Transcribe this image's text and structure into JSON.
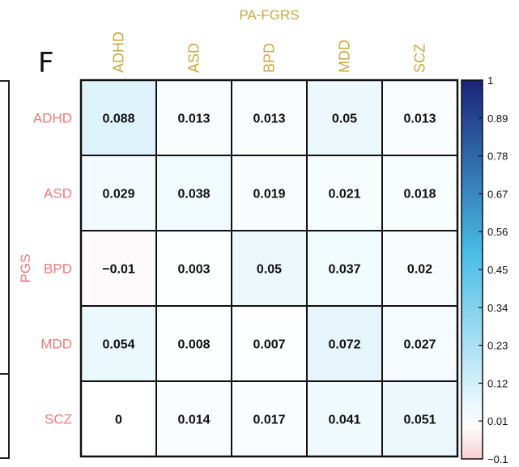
{
  "panel_letter": "F",
  "chart_data": {
    "type": "heatmap",
    "title": "",
    "xlabel": "PA-FGRS",
    "ylabel": "PGS",
    "x_categories": [
      "ADHD",
      "ASD",
      "BPD",
      "MDD",
      "SCZ"
    ],
    "y_categories": [
      "ADHD",
      "ASD",
      "BPD",
      "MDD",
      "SCZ"
    ],
    "values": [
      [
        0.088,
        0.013,
        0.013,
        0.05,
        0.013
      ],
      [
        0.029,
        0.038,
        0.019,
        0.021,
        0.018
      ],
      [
        -0.01,
        0.003,
        0.05,
        0.037,
        0.02
      ],
      [
        0.054,
        0.008,
        0.007,
        0.072,
        0.027
      ],
      [
        0,
        0.014,
        0.017,
        0.041,
        0.051
      ]
    ],
    "cell_labels": [
      [
        "0.088",
        "0.013",
        "0.013",
        "0.05",
        "0.013"
      ],
      [
        "0.029",
        "0.038",
        "0.019",
        "0.021",
        "0.018"
      ],
      [
        "−0.01",
        "0.003",
        "0.05",
        "0.037",
        "0.02"
      ],
      [
        "0.054",
        "0.008",
        "0.007",
        "0.072",
        "0.027"
      ],
      [
        "0",
        "0.014",
        "0.017",
        "0.041",
        "0.051"
      ]
    ],
    "colorbar": {
      "range": [
        -0.1,
        1
      ],
      "ticks": [
        1,
        0.89,
        0.78,
        0.67,
        0.56,
        0.45,
        0.34,
        0.23,
        0.12,
        0.01,
        -0.1
      ],
      "tick_labels": [
        "1",
        "0.89",
        "0.78",
        "0.67",
        "0.56",
        "0.45",
        "0.34",
        "0.23",
        "0.12",
        "0.01",
        "−0.1"
      ],
      "colors": {
        "low": "#f7cfd2",
        "zero": "#ffffff",
        "mid": "#48bce6",
        "high": "#1a2478"
      }
    },
    "colors": {
      "x_label": "#c5a93f",
      "y_label": "#f07a7a",
      "cell_text": "#111111",
      "grid": "#111111"
    },
    "grid": false,
    "legend": "right"
  }
}
